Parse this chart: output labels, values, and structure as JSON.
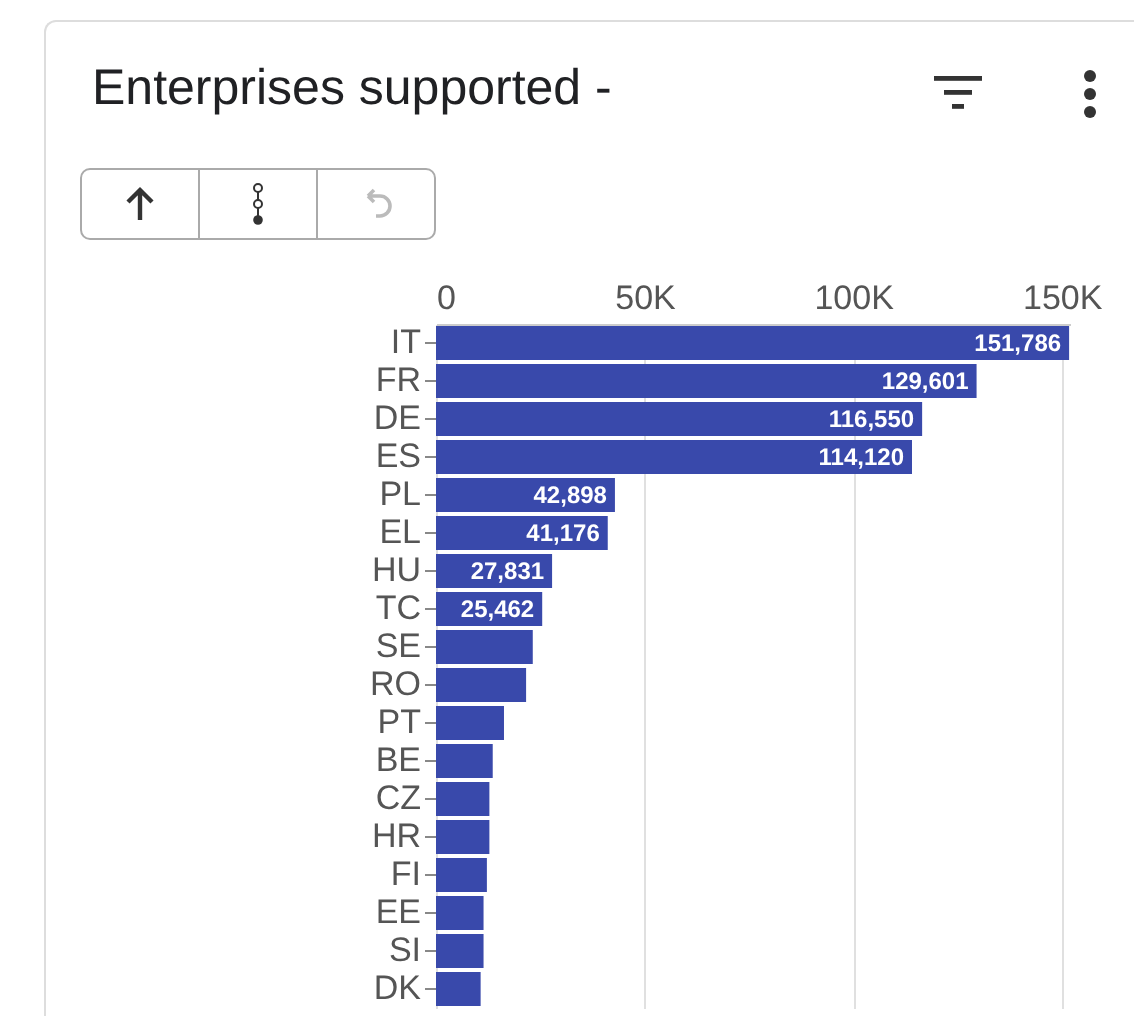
{
  "chart_data": {
    "type": "bar",
    "orientation": "horizontal",
    "title": "Enterprises supported -",
    "categories": [
      "IT",
      "FR",
      "DE",
      "ES",
      "PL",
      "EL",
      "HU",
      "TC",
      "SE",
      "RO",
      "PT",
      "BE",
      "CZ",
      "HR",
      "FI",
      "EE",
      "SI",
      "DK"
    ],
    "values": [
      151786,
      129601,
      116550,
      114120,
      42898,
      41176,
      27831,
      25462,
      23200,
      21600,
      16300,
      13600,
      12800,
      12800,
      12200,
      11400,
      11400,
      10700
    ],
    "value_labels": [
      "151,786",
      "129,601",
      "116,550",
      "114,120",
      "42,898",
      "41,176",
      "27,831",
      "25,462",
      null,
      null,
      null,
      null,
      null,
      null,
      null,
      null,
      null,
      null
    ],
    "color": "#3949ab",
    "xlim": [
      0,
      152000
    ],
    "xticks": [
      {
        "value": 0,
        "label": "0"
      },
      {
        "value": 50000,
        "label": "50K"
      },
      {
        "value": 100000,
        "label": "100K"
      },
      {
        "value": 150000,
        "label": "150K"
      }
    ],
    "grid": "x"
  }
}
